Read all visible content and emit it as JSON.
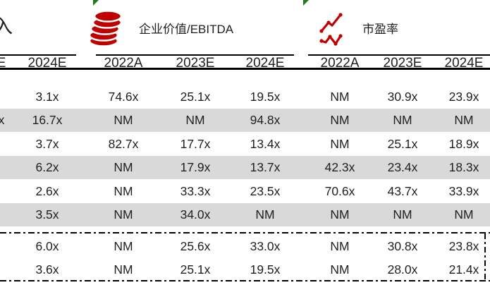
{
  "header": {
    "partial_left_title": "入",
    "groups": [
      {
        "id": "ev-ebitda",
        "title": "企业价值/EBITDA",
        "icon": "coins-icon"
      },
      {
        "id": "pe-ratio",
        "title": "市盈率",
        "icon": "line-chart-icon"
      }
    ]
  },
  "table": {
    "column_headers": [
      "E",
      "2024E",
      "2022A",
      "2023E",
      "2024E",
      "2022A",
      "2023E",
      "2024E"
    ],
    "rows": [
      {
        "values": [
          "",
          "3.1x",
          "74.6x",
          "25.1x",
          "19.5x",
          "NM",
          "30.9x",
          "23.9x"
        ],
        "shaded": false
      },
      {
        "values": [
          "x",
          "16.7x",
          "NM",
          "NM",
          "94.8x",
          "NM",
          "NM",
          "NM"
        ],
        "shaded": true
      },
      {
        "values": [
          "",
          "3.7x",
          "82.7x",
          "17.7x",
          "13.4x",
          "NM",
          "25.1x",
          "18.9x"
        ],
        "shaded": false
      },
      {
        "values": [
          "",
          "6.2x",
          "NM",
          "17.9x",
          "13.7x",
          "42.3x",
          "23.4x",
          "18.3x"
        ],
        "shaded": true
      },
      {
        "values": [
          "",
          "2.6x",
          "NM",
          "33.3x",
          "23.5x",
          "70.6x",
          "43.7x",
          "33.9x"
        ],
        "shaded": false
      },
      {
        "values": [
          "",
          "3.5x",
          "NM",
          "34.0x",
          "NM",
          "NM",
          "NM",
          "NM"
        ],
        "shaded": true
      },
      {
        "values": [
          "",
          "6.0x",
          "NM",
          "25.6x",
          "33.0x",
          "NM",
          "30.8x",
          "23.8x"
        ],
        "shaded": false
      },
      {
        "values": [
          "",
          "3.6x",
          "NM",
          "25.1x",
          "19.5x",
          "NM",
          "28.0x",
          "21.4x"
        ],
        "shaded": false
      }
    ]
  },
  "colors": {
    "accent_red": "#C00000",
    "marker_green": "#217A21",
    "row_shade": "#D9D9D9",
    "text": "#1F1F1F"
  }
}
